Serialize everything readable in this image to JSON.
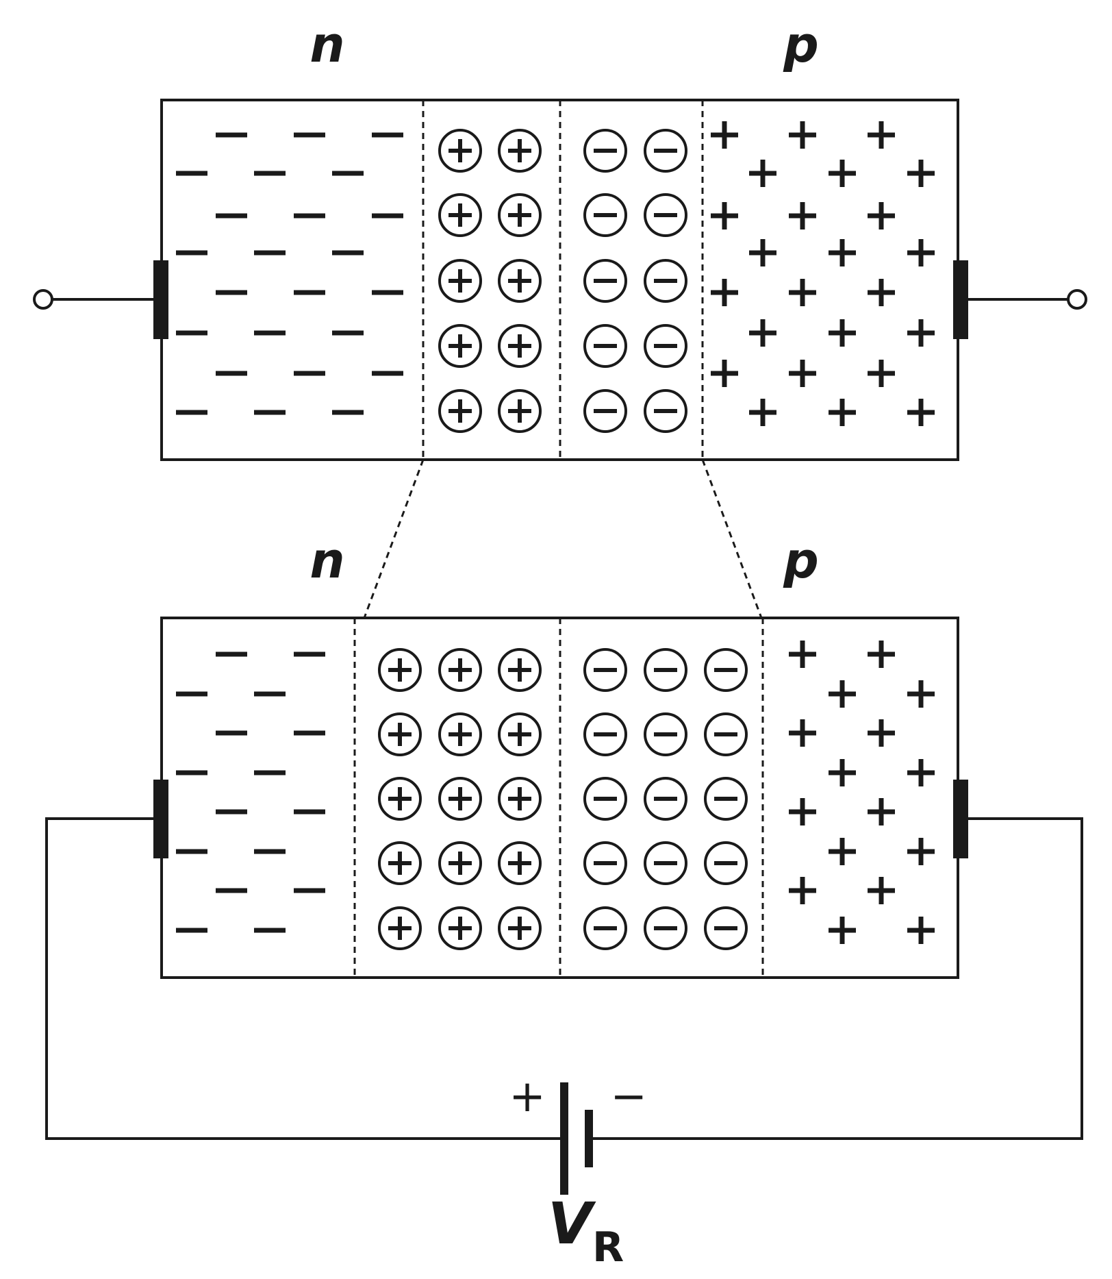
{
  "top_junction": {
    "n_label": "n",
    "p_label": "p",
    "depletion_pairs_per_column": 5,
    "ion_columns_per_side": 2
  },
  "bottom_junction": {
    "n_label": "n",
    "p_label": "p",
    "depletion_pairs_per_column": 5,
    "ion_columns_per_side": 3
  },
  "battery": {
    "plus_label": "+",
    "minus_label": "−",
    "voltage_symbol": "V",
    "voltage_subscript": "R"
  }
}
